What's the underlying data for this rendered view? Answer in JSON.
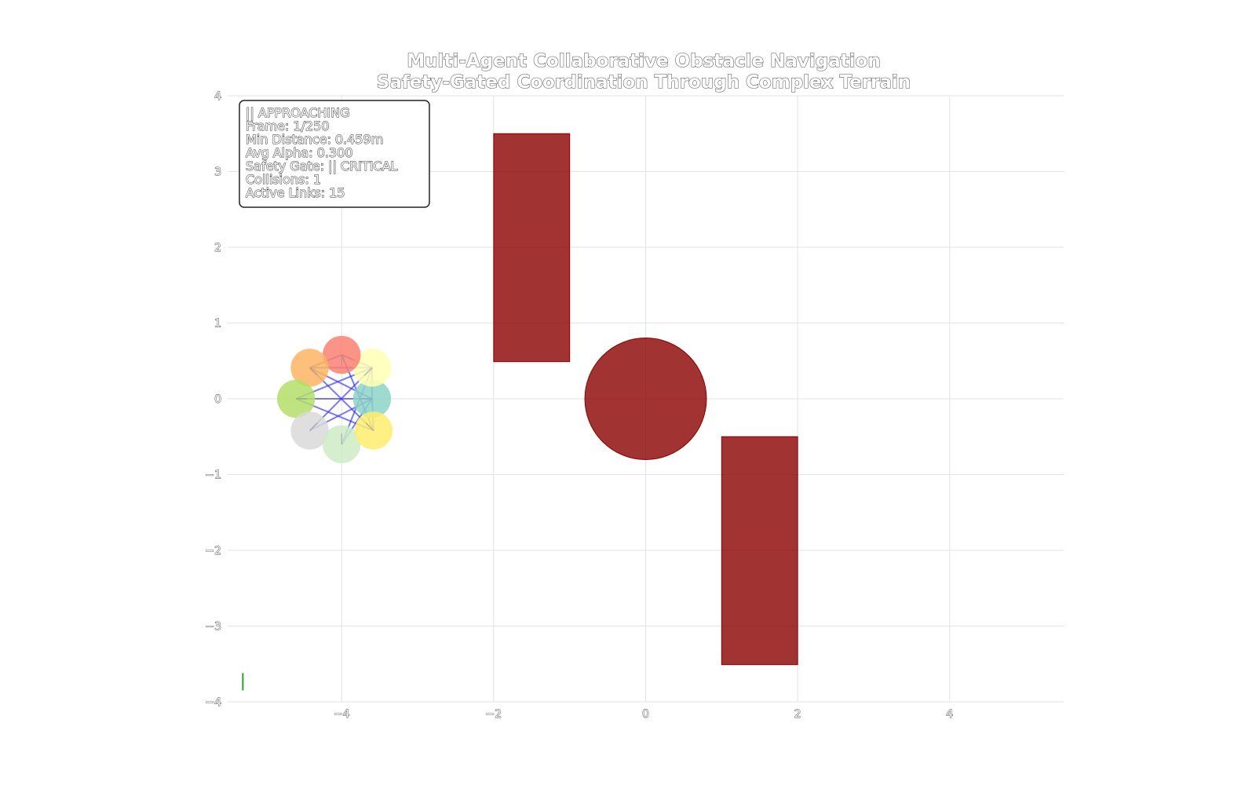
{
  "figure": {
    "title_line1": "Multi-Agent Collaborative Obstacle Navigation",
    "title_line2": "Safety-Gated Coordination Through Complex Terrain"
  },
  "info_box": {
    "lines": [
      "|| APPROACHING",
      "Frame: 1/250",
      "Min Distance: 0.459m",
      "Avg Alpha: 0.300",
      "Safety Gate: || CRITICAL",
      "Collisions: 1",
      "Active Links: 15"
    ]
  },
  "chart_data": {
    "type": "scatter",
    "title": "Multi-Agent Collaborative Obstacle Navigation\nSafety-Gated Coordination Through Complex Terrain",
    "xlim": [
      -5.5,
      5.5
    ],
    "ylim": [
      -4,
      4
    ],
    "xticks": [
      -4,
      -2,
      0,
      2,
      4
    ],
    "xtick_labels": [
      "−4",
      "−2",
      "0",
      "2",
      "4"
    ],
    "yticks": [
      -4,
      -3,
      -2,
      -1,
      0,
      1,
      2,
      3,
      4
    ],
    "ytick_labels": [
      "−4",
      "−3",
      "−2",
      "−1",
      "0",
      "1",
      "2",
      "3",
      "4"
    ],
    "grid": true,
    "obstacles": [
      {
        "shape": "rect",
        "x": -2,
        "y": 0.5,
        "width": 1,
        "height": 3,
        "color": "#8b0000"
      },
      {
        "shape": "circle",
        "cx": 0,
        "cy": 0,
        "r": 0.8,
        "color": "#8b0000"
      },
      {
        "shape": "rect",
        "x": 1,
        "y": -3.5,
        "width": 1,
        "height": 3,
        "color": "#8b0000"
      }
    ],
    "agent_radius": 0.25,
    "agents": [
      {
        "x": -3.6,
        "y": 0.0,
        "color": "#8dd3c7"
      },
      {
        "x": -3.6,
        "y": 0.41,
        "color": "#ffffb3"
      },
      {
        "x": -4.0,
        "y": 0.58,
        "color": "#fb8072"
      },
      {
        "x": -4.42,
        "y": 0.41,
        "color": "#fdb462"
      },
      {
        "x": -4.6,
        "y": 0.0,
        "color": "#b3de69"
      },
      {
        "x": -4.42,
        "y": -0.42,
        "color": "#d9d9d9"
      },
      {
        "x": -4.0,
        "y": -0.6,
        "color": "#ccebc5"
      },
      {
        "x": -3.58,
        "y": -0.42,
        "color": "#ffed6f"
      }
    ],
    "links": [
      [
        4,
        0
      ],
      [
        4,
        1
      ],
      [
        4,
        7
      ],
      [
        3,
        0
      ],
      [
        3,
        1
      ],
      [
        3,
        7
      ],
      [
        2,
        1
      ],
      [
        2,
        7
      ],
      [
        5,
        1
      ],
      [
        5,
        0
      ],
      [
        6,
        1
      ],
      [
        6,
        0
      ],
      [
        3,
        2
      ],
      [
        1,
        0
      ],
      [
        7,
        0
      ]
    ],
    "link_color": "#3333ee",
    "progress_bar": {
      "x": -5.3,
      "y0": -3.85,
      "y1": -3.62,
      "color": "#2ca02c"
    }
  }
}
